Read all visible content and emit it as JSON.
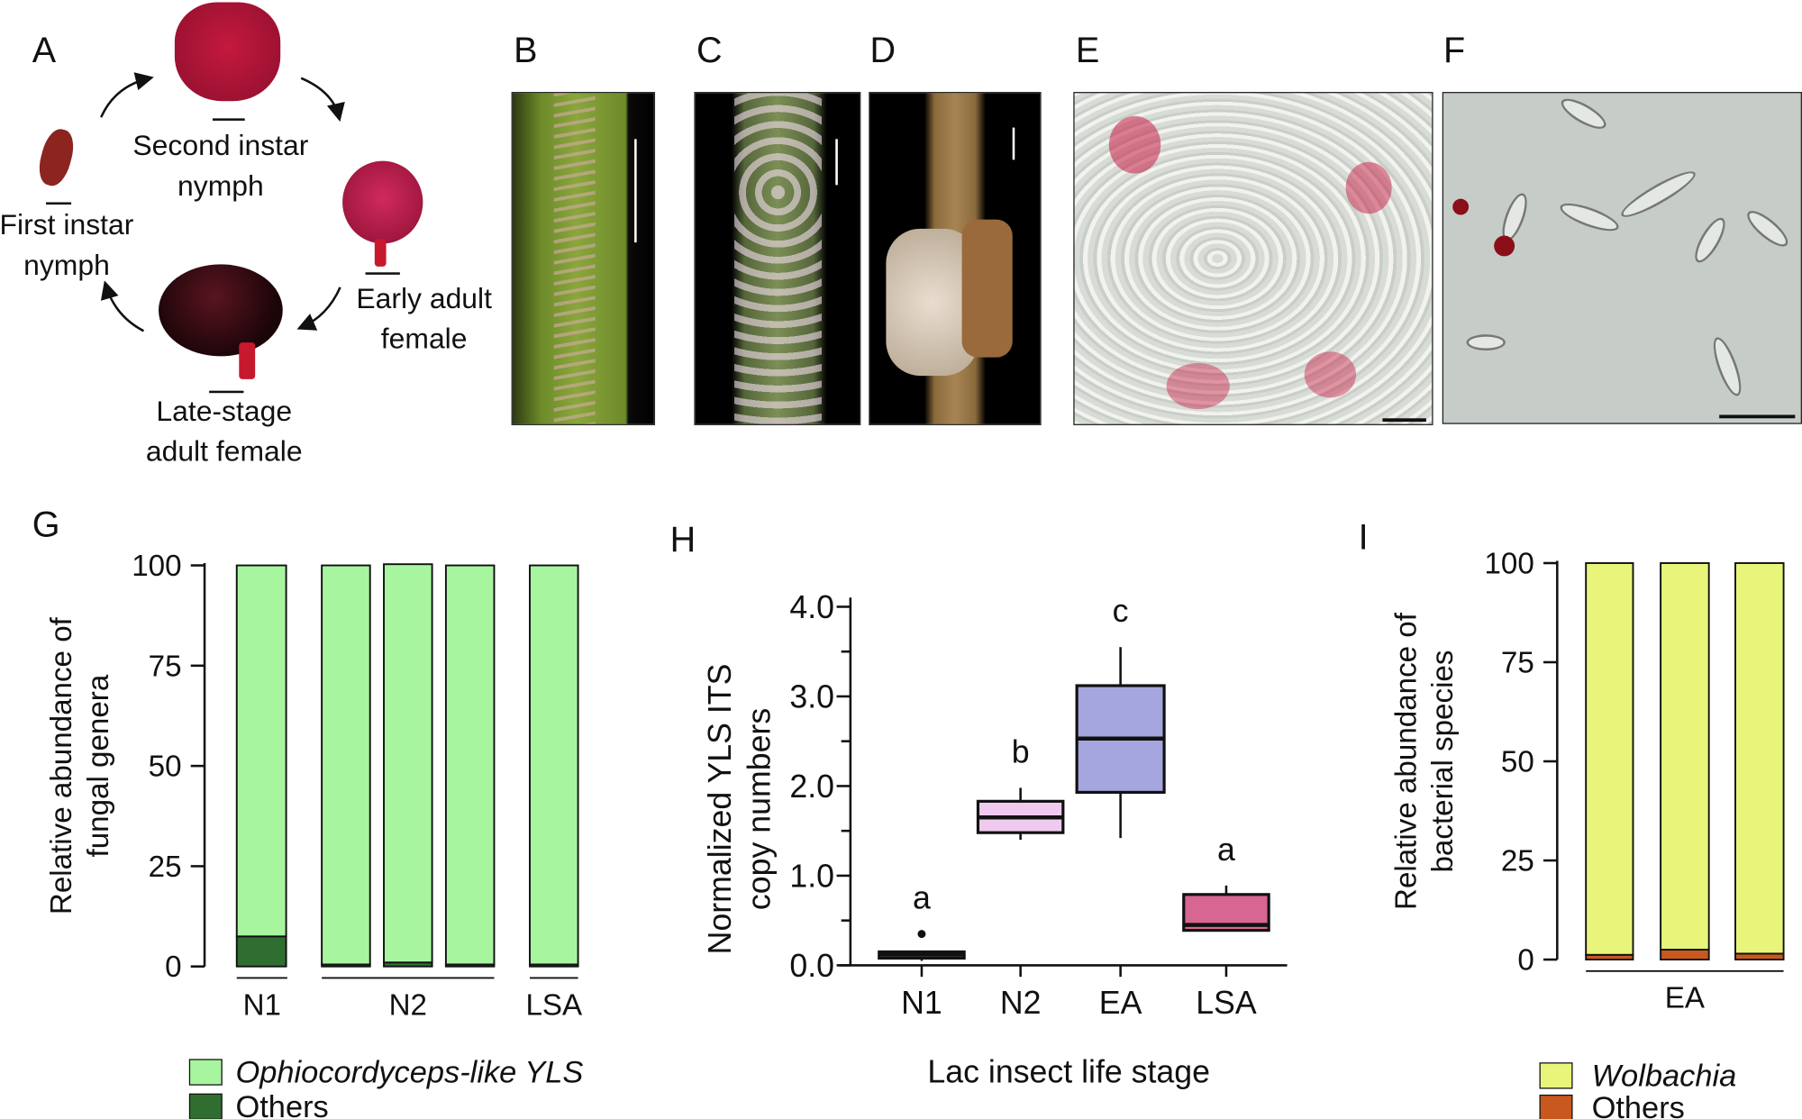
{
  "panels": {
    "A": {
      "letter": "A",
      "stages": [
        "Second instar nymph",
        "Early adult female",
        "Late-stage adult female",
        "First instar nymph"
      ],
      "captions": {
        "second": [
          "Second instar",
          "nymph"
        ],
        "early": [
          "Early adult",
          "female"
        ],
        "late": [
          "Late-stage",
          "adult female"
        ],
        "first": [
          "First instar",
          "nymph"
        ]
      }
    },
    "B": {
      "letter": "B"
    },
    "C": {
      "letter": "C"
    },
    "D": {
      "letter": "D"
    },
    "E": {
      "letter": "E"
    },
    "F": {
      "letter": "F"
    }
  },
  "chart_data": [
    {
      "id": "G",
      "letter": "G",
      "type": "bar",
      "stacked": true,
      "ylabel": [
        "Relative abundance of",
        "fungal genera"
      ],
      "ylim": [
        0,
        100
      ],
      "yticks": [
        0,
        25,
        50,
        75,
        100
      ],
      "bars": [
        {
          "group": "N1",
          "series": {
            "Ophiocordyceps-like YLS": 92.5,
            "Others": 7.5
          }
        },
        {
          "group": "N2",
          "series": {
            "Ophiocordyceps-like YLS": 99.5,
            "Others": 0.5
          }
        },
        {
          "group": "N2",
          "series": {
            "Ophiocordyceps-like YLS": 99.3,
            "Others": 1.0
          }
        },
        {
          "group": "N2",
          "series": {
            "Ophiocordyceps-like YLS": 99.5,
            "Others": 0.5
          }
        },
        {
          "group": "LSA",
          "series": {
            "Ophiocordyceps-like YLS": 99.5,
            "Others": 0.5
          }
        }
      ],
      "groups": [
        "N1",
        "N2",
        "LSA"
      ],
      "legend": [
        {
          "name": "Ophiocordyceps-like YLS",
          "color": "#a8f5a0"
        },
        {
          "name": "Others",
          "color": "#2f6e30"
        }
      ],
      "legend_placement": "bottom-left"
    },
    {
      "id": "H",
      "letter": "H",
      "type": "box",
      "ylabel": [
        "Normalized YLS ITS",
        "copy numbers"
      ],
      "xlabel": "Lac insect life stage",
      "ylim": [
        0,
        4
      ],
      "yticks": [
        "0.0",
        "1.0",
        "2.0",
        "3.0",
        "4.0"
      ],
      "boxes": [
        {
          "category": "N1",
          "min": 0.05,
          "q1": 0.08,
          "median": 0.12,
          "q3": 0.15,
          "max": 0.15,
          "outliers": [
            0.35
          ],
          "letter": "a",
          "color": "#d9a3a3"
        },
        {
          "category": "N2",
          "min": 1.4,
          "q1": 1.48,
          "median": 1.65,
          "q3": 1.83,
          "max": 1.98,
          "outliers": [],
          "letter": "b",
          "color": "#eecbee"
        },
        {
          "category": "EA",
          "min": 1.42,
          "q1": 1.93,
          "median": 2.53,
          "q3": 3.12,
          "max": 3.55,
          "outliers": [],
          "letter": "c",
          "color": "#a5a5e0"
        },
        {
          "category": "LSA",
          "min": 0.39,
          "q1": 0.39,
          "median": 0.45,
          "q3": 0.79,
          "max": 0.89,
          "outliers": [],
          "letter": "a",
          "color": "#d86692"
        }
      ]
    },
    {
      "id": "I",
      "letter": "I",
      "type": "bar",
      "stacked": true,
      "ylabel": [
        "Relative abundance of",
        "bacterial species"
      ],
      "ylim": [
        0,
        100
      ],
      "yticks": [
        0,
        25,
        50,
        75,
        100
      ],
      "bars": [
        {
          "group": "EA",
          "series": {
            "Wolbachia": 98.8,
            "Others": 1.2
          }
        },
        {
          "group": "EA",
          "series": {
            "Wolbachia": 97.5,
            "Others": 2.5
          }
        },
        {
          "group": "EA",
          "series": {
            "Wolbachia": 98.5,
            "Others": 1.5
          }
        }
      ],
      "groups": [
        "EA"
      ],
      "legend": [
        {
          "name": "Wolbachia",
          "color": "#e8f57a"
        },
        {
          "name": "Others",
          "color": "#c8581e"
        }
      ],
      "legend_placement": "bottom-right"
    }
  ]
}
